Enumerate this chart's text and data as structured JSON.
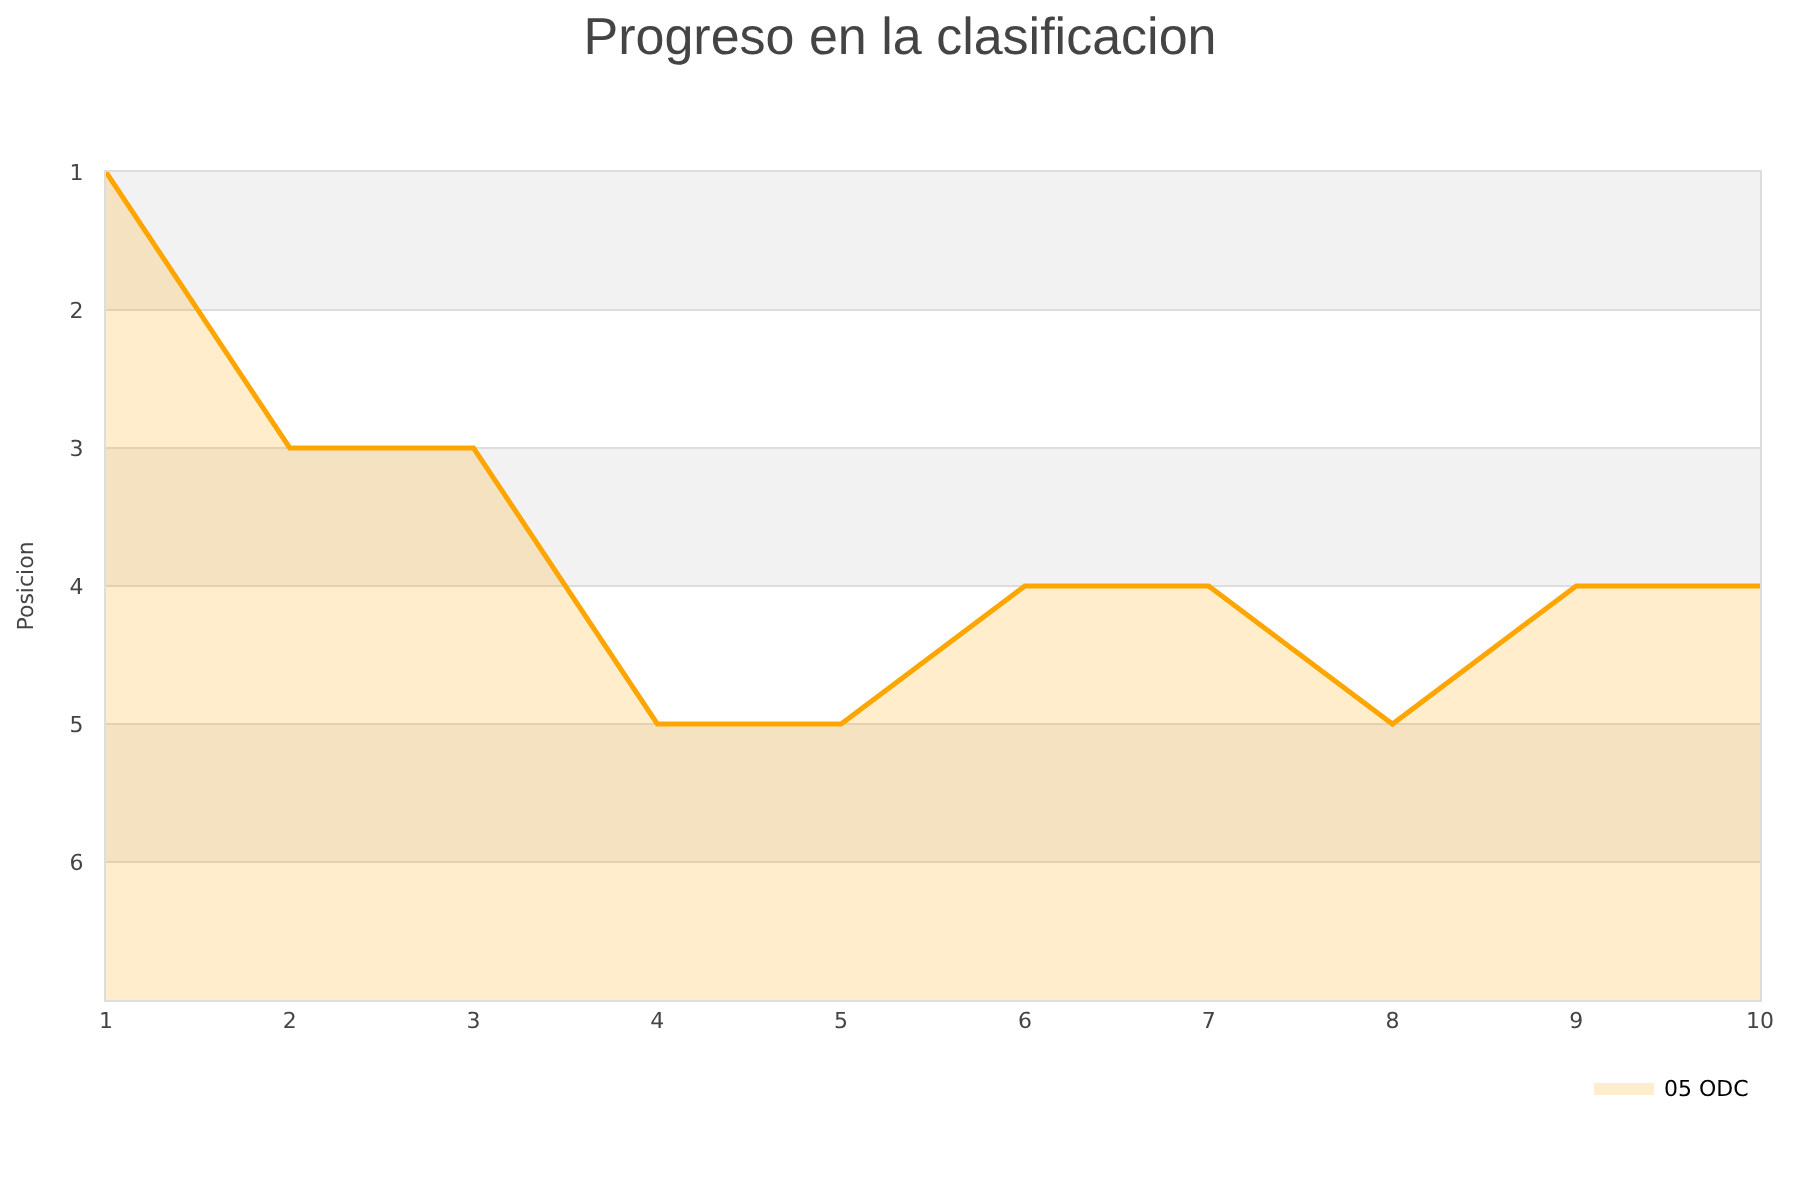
{
  "chart_data": {
    "type": "area",
    "title": "Progreso en la clasificacion",
    "ylabel": "Posicion",
    "x": [
      1,
      2,
      3,
      4,
      5,
      6,
      7,
      8,
      9,
      10
    ],
    "series": [
      {
        "name": "05 ODC",
        "color": "#ffa500",
        "values": [
          1,
          3,
          3,
          5,
          5,
          4,
          4,
          5,
          4,
          4
        ]
      }
    ],
    "xlim": [
      1,
      10
    ],
    "xticks": [
      1,
      2,
      3,
      4,
      5,
      6,
      7,
      8,
      9,
      10
    ],
    "ylim": [
      7,
      1
    ],
    "yticks": [
      1,
      2,
      3,
      4,
      5,
      6
    ],
    "bands": [
      {
        "axis": "y",
        "from": 1,
        "to": 2,
        "color": "#f2f2f2"
      },
      {
        "axis": "y",
        "from": 3,
        "to": 4,
        "color": "#f2f2f2"
      },
      {
        "axis": "y",
        "from": 5,
        "to": 6,
        "color": "#f2f2f2"
      }
    ],
    "grid": "y",
    "legend": "bottom right",
    "marker": "none",
    "line_style": "solid"
  }
}
